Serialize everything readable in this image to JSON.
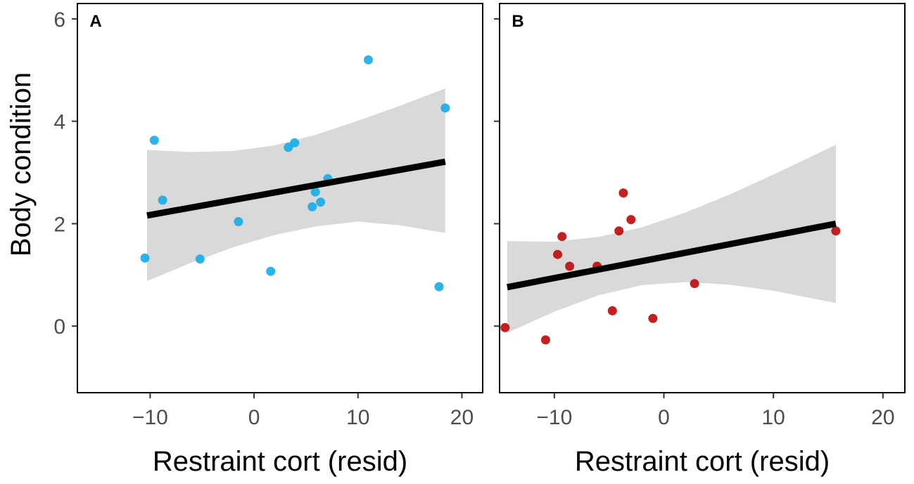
{
  "ylabel": "Body condition",
  "colors": {
    "panel_a_points": "#1aaee8",
    "panel_b_points": "#c00d0d",
    "ribbon": "#d9d9d9",
    "fit_line": "#000000",
    "frame": "#000000",
    "tick_text": "#4d4d4d"
  },
  "chart_data": [
    {
      "panel": "A",
      "type": "scatter",
      "xlabel": "Restraint cort (resid)",
      "ylabel": "Body condition",
      "xlim": [
        -17,
        22
      ],
      "ylim": [
        -1.3,
        6.3
      ],
      "x_ticks": [
        -10,
        0,
        10,
        20
      ],
      "x_tick_labels": [
        "−10",
        "0",
        "10",
        "20"
      ],
      "y_ticks": [
        0,
        2,
        4,
        6
      ],
      "y_tick_labels": [
        "0",
        "2",
        "4",
        "6"
      ],
      "grid": false,
      "points": [
        {
          "x": -10.5,
          "y": 1.33
        },
        {
          "x": -9.6,
          "y": 3.63
        },
        {
          "x": -8.8,
          "y": 2.46
        },
        {
          "x": -5.2,
          "y": 1.31
        },
        {
          "x": -1.5,
          "y": 2.04
        },
        {
          "x": 1.6,
          "y": 1.07
        },
        {
          "x": 3.3,
          "y": 3.49
        },
        {
          "x": 3.9,
          "y": 3.58
        },
        {
          "x": 5.6,
          "y": 2.33
        },
        {
          "x": 5.9,
          "y": 2.62
        },
        {
          "x": 6.4,
          "y": 2.42
        },
        {
          "x": 7.1,
          "y": 2.88
        },
        {
          "x": 11.0,
          "y": 5.2
        },
        {
          "x": 17.8,
          "y": 0.77
        },
        {
          "x": 18.4,
          "y": 4.26
        }
      ],
      "fit": {
        "x": [
          -10.3,
          18.4
        ],
        "y": [
          2.16,
          3.21
        ]
      },
      "ci_ribbon": {
        "x": [
          -10.3,
          -6,
          -2,
          2,
          6,
          10,
          14,
          18.4
        ],
        "upper": [
          3.44,
          3.4,
          3.42,
          3.53,
          3.74,
          4.01,
          4.3,
          4.64
        ],
        "lower": [
          0.88,
          1.24,
          1.54,
          1.78,
          1.95,
          2.04,
          1.97,
          1.82
        ]
      }
    },
    {
      "panel": "B",
      "type": "scatter",
      "xlabel": "Restraint cort (resid)",
      "ylabel": "",
      "xlim": [
        -15,
        22
      ],
      "ylim": [
        -1.3,
        6.3
      ],
      "x_ticks": [
        -10,
        0,
        10,
        20
      ],
      "x_tick_labels": [
        "−10",
        "0",
        "10",
        "20"
      ],
      "y_ticks": [
        0,
        2,
        4,
        6
      ],
      "y_tick_labels": [],
      "grid": false,
      "points": [
        {
          "x": -14.5,
          "y": -0.03
        },
        {
          "x": -10.8,
          "y": -0.27
        },
        {
          "x": -9.7,
          "y": 1.4
        },
        {
          "x": -9.3,
          "y": 1.75
        },
        {
          "x": -8.6,
          "y": 1.17
        },
        {
          "x": -6.1,
          "y": 1.17
        },
        {
          "x": -4.7,
          "y": 0.3
        },
        {
          "x": -4.1,
          "y": 1.86
        },
        {
          "x": -3.7,
          "y": 2.6
        },
        {
          "x": -3.0,
          "y": 2.08
        },
        {
          "x": -1.0,
          "y": 0.15
        },
        {
          "x": 2.8,
          "y": 0.83
        },
        {
          "x": 15.7,
          "y": 1.86
        }
      ],
      "fit": {
        "x": [
          -14.3,
          15.7
        ],
        "y": [
          0.76,
          2.0
        ]
      },
      "ci_ribbon": {
        "x": [
          -14.3,
          -10,
          -6,
          -2,
          2,
          6,
          10,
          15.7
        ],
        "upper": [
          1.66,
          1.65,
          1.74,
          1.93,
          2.22,
          2.57,
          2.96,
          3.54
        ],
        "lower": [
          -0.13,
          0.28,
          0.6,
          0.8,
          0.86,
          0.81,
          0.69,
          0.45
        ]
      }
    }
  ]
}
